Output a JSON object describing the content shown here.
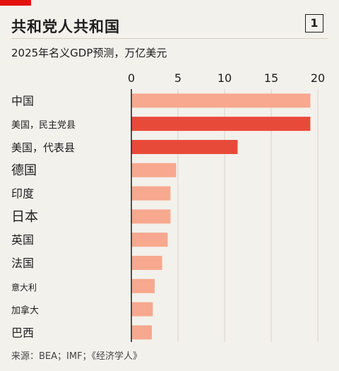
{
  "header": {
    "title": "共和党人共和国",
    "badge": "1",
    "subtitle": "2025年名义GDP预测，万亿美元"
  },
  "footer": {
    "source": "来源：BEA；IMF；《经济学人》"
  },
  "colors": {
    "accent": "#e3120b",
    "highlight": "#e84a3a",
    "base": "#f7a88f",
    "grid": "#d8d4cc"
  },
  "chart_data": {
    "type": "bar",
    "orientation": "horizontal",
    "title": "2025年名义GDP预测，万亿美元",
    "xlim": [
      0,
      20
    ],
    "ticks": [
      0,
      5,
      10,
      15,
      20
    ],
    "tick_labels": [
      "0",
      "5",
      "10",
      "15",
      "20"
    ],
    "grid": true,
    "categories": [
      "中国",
      "美国，民主党县",
      "美国，代表县",
      "德国",
      "印度",
      "日本",
      "英国",
      "法国",
      "意大利",
      "加拿大",
      "巴西"
    ],
    "values": [
      19.2,
      19.2,
      11.4,
      4.8,
      4.2,
      4.2,
      3.9,
      3.3,
      2.5,
      2.3,
      2.2
    ],
    "highlighted": [
      false,
      true,
      true,
      false,
      false,
      false,
      false,
      false,
      false,
      false,
      false
    ]
  }
}
